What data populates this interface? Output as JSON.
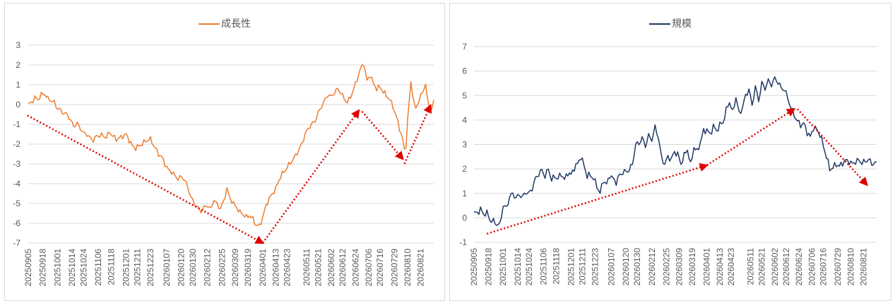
{
  "chart_data": [
    {
      "type": "line",
      "series": [
        {
          "name": "成長性",
          "color": "#ED7D31"
        }
      ],
      "ylim": [
        -7,
        3
      ],
      "yticks": [
        3,
        2,
        1,
        0,
        -1,
        -2,
        -3,
        -4,
        -5,
        -6,
        -7
      ],
      "xticks": [
        "20250905",
        "20250918",
        "20251001",
        "20251014",
        "20251024",
        "20251106",
        "20251118",
        "20251201",
        "20251211",
        "20251223",
        "20260107",
        "20260120",
        "20260130",
        "20260212",
        "20260225",
        "20260309",
        "20260319",
        "20260401",
        "20260413",
        "20260423",
        "20260511",
        "20260521",
        "20260602",
        "20260612",
        "20260624",
        "20260706",
        "20260716",
        "20260729",
        "20260810",
        "20260821"
      ],
      "xindex": [
        0,
        9,
        18,
        27,
        34,
        43,
        51,
        60,
        67,
        75,
        85,
        94,
        101,
        110,
        119,
        127,
        135,
        144,
        152,
        159,
        171,
        178,
        186,
        193,
        201,
        209,
        216,
        225,
        233,
        241
      ],
      "n_points": 250,
      "keypoints": [
        [
          0,
          0
        ],
        [
          2,
          0.1
        ],
        [
          4,
          0.35
        ],
        [
          6,
          0.25
        ],
        [
          8,
          0.5
        ],
        [
          10,
          0.55
        ],
        [
          12,
          0.3
        ],
        [
          14,
          0.2
        ],
        [
          16,
          0.1
        ],
        [
          18,
          -0.2
        ],
        [
          20,
          -0.3
        ],
        [
          22,
          -0.45
        ],
        [
          24,
          -0.5
        ],
        [
          26,
          -0.8
        ],
        [
          28,
          -1.1
        ],
        [
          30,
          -0.95
        ],
        [
          32,
          -1.2
        ],
        [
          34,
          -1.45
        ],
        [
          36,
          -1.5
        ],
        [
          38,
          -1.7
        ],
        [
          40,
          -1.8
        ],
        [
          42,
          -1.6
        ],
        [
          45,
          -1.55
        ],
        [
          48,
          -1.65
        ],
        [
          50,
          -1.4
        ],
        [
          52,
          -1.6
        ],
        [
          54,
          -1.75
        ],
        [
          57,
          -1.65
        ],
        [
          60,
          -1.5
        ],
        [
          62,
          -1.8
        ],
        [
          64,
          -2.1
        ],
        [
          66,
          -2.2
        ],
        [
          69,
          -2.05
        ],
        [
          72,
          -1.85
        ],
        [
          75,
          -1.75
        ],
        [
          78,
          -2.2
        ],
        [
          80,
          -2.5
        ],
        [
          82,
          -2.65
        ],
        [
          84,
          -3.0
        ],
        [
          86,
          -3.3
        ],
        [
          88,
          -3.4
        ],
        [
          90,
          -3.6
        ],
        [
          92,
          -3.75
        ],
        [
          94,
          -3.65
        ],
        [
          96,
          -3.8
        ],
        [
          98,
          -4.2
        ],
        [
          100,
          -4.7
        ],
        [
          102,
          -5.0
        ],
        [
          104,
          -5.2
        ],
        [
          106,
          -5.4
        ],
        [
          108,
          -5.2
        ],
        [
          110,
          -5.1
        ],
        [
          112,
          -5.3
        ],
        [
          114,
          -4.8
        ],
        [
          116,
          -5.05
        ],
        [
          118,
          -5.25
        ],
        [
          120,
          -4.9
        ],
        [
          122,
          -4.25
        ],
        [
          124,
          -4.75
        ],
        [
          126,
          -5.0
        ],
        [
          128,
          -5.2
        ],
        [
          130,
          -5.45
        ],
        [
          132,
          -5.55
        ],
        [
          134,
          -5.7
        ],
        [
          136,
          -5.6
        ],
        [
          138,
          -5.8
        ],
        [
          140,
          -6.1
        ],
        [
          142,
          -6.15
        ],
        [
          144,
          -5.7
        ],
        [
          146,
          -5.1
        ],
        [
          148,
          -4.75
        ],
        [
          150,
          -4.5
        ],
        [
          152,
          -4.25
        ],
        [
          154,
          -3.8
        ],
        [
          156,
          -3.5
        ],
        [
          158,
          -3.3
        ],
        [
          160,
          -3.05
        ],
        [
          162,
          -2.85
        ],
        [
          164,
          -2.6
        ],
        [
          166,
          -2.3
        ],
        [
          168,
          -2.0
        ],
        [
          170,
          -1.5
        ],
        [
          172,
          -1.2
        ],
        [
          174,
          -1.0
        ],
        [
          176,
          -0.85
        ],
        [
          178,
          -0.45
        ],
        [
          180,
          -0.1
        ],
        [
          182,
          0.2
        ],
        [
          184,
          0.5
        ],
        [
          186,
          0.4
        ],
        [
          188,
          0.6
        ],
        [
          190,
          0.8
        ],
        [
          192,
          0.6
        ],
        [
          194,
          0.3
        ],
        [
          196,
          0.1
        ],
        [
          198,
          0.4
        ],
        [
          200,
          0.8
        ],
        [
          202,
          1.3
        ],
        [
          204,
          1.8
        ],
        [
          206,
          2.1
        ],
        [
          208,
          1.2
        ],
        [
          210,
          1.5
        ],
        [
          212,
          1.05
        ],
        [
          214,
          0.8
        ],
        [
          216,
          0.9
        ],
        [
          218,
          0.65
        ],
        [
          220,
          0.45
        ],
        [
          222,
          0.25
        ],
        [
          224,
          -0.1
        ],
        [
          226,
          -0.6
        ],
        [
          228,
          -1.2
        ],
        [
          230,
          -1.8
        ],
        [
          231,
          -2.3
        ],
        [
          232,
          -2.05
        ],
        [
          233,
          -0.8
        ],
        [
          234,
          0.2
        ],
        [
          235,
          1.15
        ],
        [
          236,
          0.6
        ],
        [
          237,
          0.0
        ],
        [
          238,
          -0.2
        ],
        [
          240,
          0.25
        ],
        [
          242,
          0.6
        ],
        [
          244,
          1.05
        ],
        [
          245,
          0.3
        ],
        [
          246,
          0.0
        ],
        [
          247,
          -0.3
        ],
        [
          248,
          -0.2
        ],
        [
          249,
          0.15
        ]
      ],
      "arrows": [
        [
          -0.5,
          -0.55,
          144,
          -7.0
        ],
        [
          144,
          -7.0,
          203,
          -0.3
        ],
        [
          205,
          -0.35,
          230,
          -2.75
        ],
        [
          231,
          -3.0,
          247,
          -0.05
        ]
      ]
    },
    {
      "type": "line",
      "series": [
        {
          "name": "規模",
          "color": "#203864"
        }
      ],
      "ylim": [
        -1,
        7
      ],
      "yticks": [
        7,
        6,
        5,
        4,
        3,
        2,
        1,
        0,
        -1
      ],
      "xticks": [
        "20250905",
        "20250918",
        "20251001",
        "20251014",
        "20251024",
        "20251106",
        "20251118",
        "20251201",
        "20251211",
        "20251223",
        "20260107",
        "20260120",
        "20260130",
        "20260212",
        "20260225",
        "20260309",
        "20260319",
        "20260401",
        "20260413",
        "20260423",
        "20260511",
        "20260521",
        "20260602",
        "20260612",
        "20260624",
        "20260706",
        "20260716",
        "20260729",
        "20260810",
        "20260821"
      ],
      "xindex": [
        0,
        9,
        18,
        27,
        34,
        43,
        51,
        60,
        67,
        75,
        85,
        94,
        101,
        110,
        119,
        127,
        135,
        144,
        152,
        159,
        171,
        178,
        186,
        193,
        201,
        209,
        216,
        225,
        233,
        241
      ],
      "n_points": 250,
      "keypoints": [
        [
          0,
          0.2
        ],
        [
          2,
          0.2
        ],
        [
          4,
          0.35
        ],
        [
          6,
          0.15
        ],
        [
          8,
          0.2
        ],
        [
          10,
          -0.1
        ],
        [
          12,
          -0.15
        ],
        [
          14,
          -0.25
        ],
        [
          16,
          -0.3
        ],
        [
          18,
          0.5
        ],
        [
          20,
          0.4
        ],
        [
          22,
          0.85
        ],
        [
          24,
          1.0
        ],
        [
          26,
          0.8
        ],
        [
          28,
          0.95
        ],
        [
          30,
          0.85
        ],
        [
          32,
          1.05
        ],
        [
          34,
          1.0
        ],
        [
          36,
          1.2
        ],
        [
          38,
          1.6
        ],
        [
          40,
          1.8
        ],
        [
          42,
          1.95
        ],
        [
          44,
          1.7
        ],
        [
          46,
          2.0
        ],
        [
          48,
          1.55
        ],
        [
          50,
          1.7
        ],
        [
          52,
          1.6
        ],
        [
          54,
          1.8
        ],
        [
          56,
          1.55
        ],
        [
          58,
          1.85
        ],
        [
          60,
          1.75
        ],
        [
          62,
          2.05
        ],
        [
          64,
          2.2
        ],
        [
          66,
          2.5
        ],
        [
          68,
          2.15
        ],
        [
          70,
          1.7
        ],
        [
          72,
          1.75
        ],
        [
          74,
          1.6
        ],
        [
          76,
          1.3
        ],
        [
          78,
          1.0
        ],
        [
          80,
          1.55
        ],
        [
          82,
          1.35
        ],
        [
          84,
          1.75
        ],
        [
          86,
          1.6
        ],
        [
          88,
          1.45
        ],
        [
          90,
          1.75
        ],
        [
          92,
          1.85
        ],
        [
          94,
          1.9
        ],
        [
          96,
          1.95
        ],
        [
          98,
          2.2
        ],
        [
          100,
          3.0
        ],
        [
          102,
          3.05
        ],
        [
          104,
          3.25
        ],
        [
          106,
          2.95
        ],
        [
          108,
          3.35
        ],
        [
          110,
          3.2
        ],
        [
          112,
          3.7
        ],
        [
          114,
          3.3
        ],
        [
          116,
          2.45
        ],
        [
          118,
          2.2
        ],
        [
          120,
          2.5
        ],
        [
          122,
          2.4
        ],
        [
          124,
          2.7
        ],
        [
          126,
          2.6
        ],
        [
          128,
          2.2
        ],
        [
          130,
          2.55
        ],
        [
          132,
          2.8
        ],
        [
          134,
          2.15
        ],
        [
          136,
          2.9
        ],
        [
          138,
          2.7
        ],
        [
          140,
          3.1
        ],
        [
          142,
          3.55
        ],
        [
          144,
          3.6
        ],
        [
          146,
          3.4
        ],
        [
          148,
          3.75
        ],
        [
          150,
          3.55
        ],
        [
          152,
          3.8
        ],
        [
          154,
          3.9
        ],
        [
          156,
          4.4
        ],
        [
          158,
          4.75
        ],
        [
          160,
          4.3
        ],
        [
          162,
          4.95
        ],
        [
          164,
          4.25
        ],
        [
          166,
          4.5
        ],
        [
          168,
          5.0
        ],
        [
          170,
          5.25
        ],
        [
          172,
          4.6
        ],
        [
          174,
          5.35
        ],
        [
          176,
          4.8
        ],
        [
          178,
          5.5
        ],
        [
          180,
          5.3
        ],
        [
          182,
          5.6
        ],
        [
          184,
          5.45
        ],
        [
          186,
          5.7
        ],
        [
          188,
          5.55
        ],
        [
          190,
          5.3
        ],
        [
          192,
          5.25
        ],
        [
          194,
          4.9
        ],
        [
          196,
          4.5
        ],
        [
          198,
          4.2
        ],
        [
          200,
          3.95
        ],
        [
          202,
          3.8
        ],
        [
          204,
          3.85
        ],
        [
          206,
          3.5
        ],
        [
          208,
          3.3
        ],
        [
          210,
          3.7
        ],
        [
          212,
          3.6
        ],
        [
          214,
          3.4
        ],
        [
          216,
          2.95
        ],
        [
          218,
          2.5
        ],
        [
          220,
          2.0
        ],
        [
          222,
          2.05
        ],
        [
          224,
          2.2
        ],
        [
          226,
          2.1
        ],
        [
          228,
          2.25
        ],
        [
          230,
          2.35
        ],
        [
          232,
          2.3
        ],
        [
          234,
          2.2
        ],
        [
          236,
          2.3
        ],
        [
          238,
          2.35
        ],
        [
          240,
          2.25
        ],
        [
          242,
          2.3
        ],
        [
          244,
          2.4
        ],
        [
          246,
          2.2
        ],
        [
          248,
          2.25
        ],
        [
          249,
          2.2
        ]
      ],
      "arrows": [
        [
          8,
          -0.65,
          144,
          2.15
        ],
        [
          144,
          2.15,
          198,
          4.45
        ],
        [
          200,
          4.45,
          243,
          1.35
        ]
      ]
    }
  ]
}
